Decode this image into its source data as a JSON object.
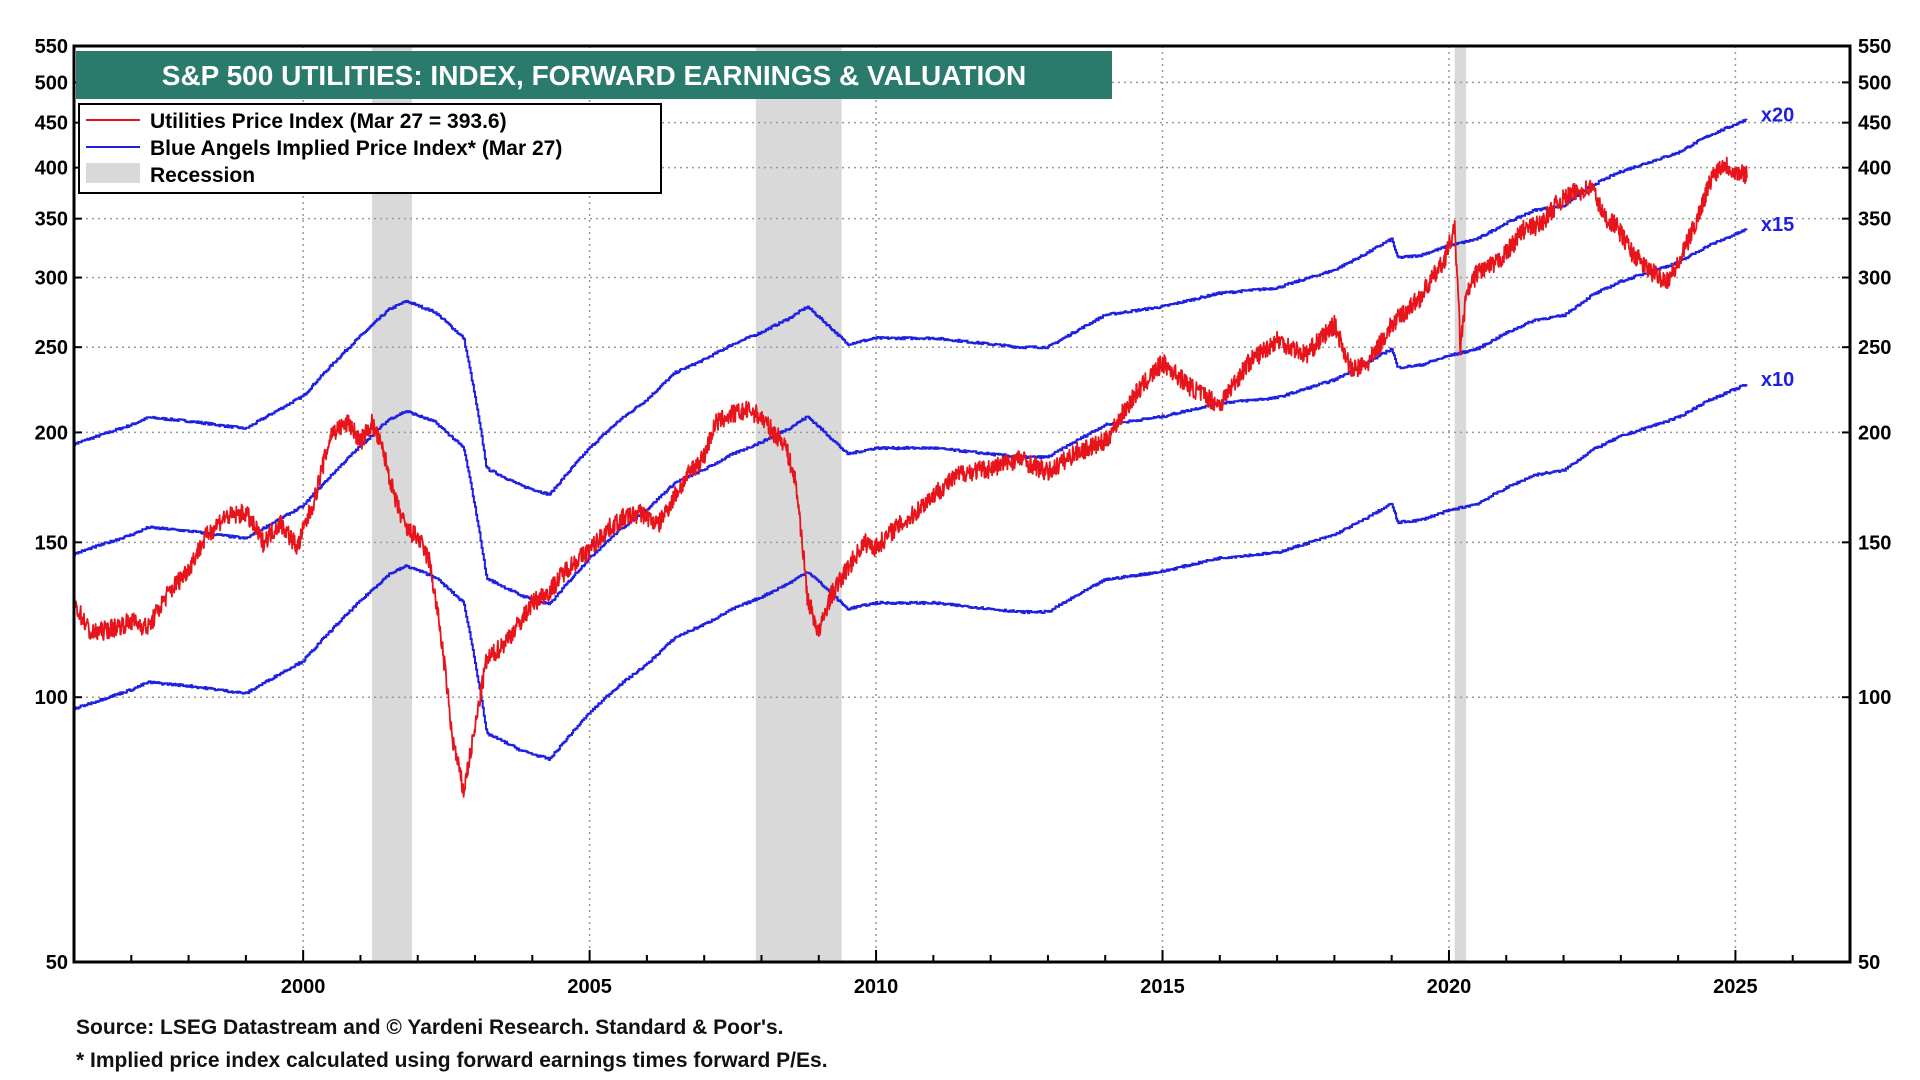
{
  "chart_data": {
    "type": "line",
    "title": "S&P 500 UTILITIES: INDEX, FORWARD EARNINGS & VALUATION",
    "y_scale": "log",
    "ylim": [
      50,
      550
    ],
    "xlim": [
      1996.0,
      2027.0
    ],
    "y_ticks": [
      50,
      100,
      150,
      200,
      250,
      300,
      350,
      400,
      450,
      500,
      550
    ],
    "x_ticks": [
      2000,
      2005,
      2010,
      2015,
      2020,
      2025
    ],
    "legend": [
      {
        "label": "Utilities Price Index (Mar 27 = 393.6)",
        "color": "#e8141b",
        "kind": "line"
      },
      {
        "label": "Blue Angels Implied Price Index* (Mar 27)",
        "color": "#1f1fe0",
        "kind": "line"
      },
      {
        "label": "Recession",
        "color": "#d9d9d9",
        "kind": "box"
      }
    ],
    "recessions": [
      [
        2001.2,
        2001.9
      ],
      [
        2007.9,
        2009.4
      ],
      [
        2020.1,
        2020.3
      ]
    ],
    "forward_earnings_x": [
      1996.0,
      1997.0,
      1997.3,
      1998.0,
      1999.0,
      2000.0,
      2000.8,
      2001.5,
      2001.8,
      2002.3,
      2002.8,
      2003.2,
      2003.8,
      2004.3,
      2005.0,
      2005.5,
      2006.0,
      2006.5,
      2007.0,
      2007.5,
      2008.0,
      2008.5,
      2008.8,
      2009.5,
      2010.0,
      2011.0,
      2012.0,
      2012.5,
      2013.0,
      2014.0,
      2015.0,
      2016.0,
      2017.0,
      2018.0,
      2018.5,
      2019.0,
      2019.1,
      2019.5,
      2020.0,
      2020.5,
      2021.0,
      2021.5,
      2022.0,
      2022.5,
      2023.0,
      2023.5,
      2024.0,
      2024.5,
      2025.0,
      2025.2
    ],
    "forward_earnings_y": [
      9.7,
      10.2,
      10.4,
      10.3,
      10.1,
      11.0,
      12.5,
      13.8,
      14.1,
      13.7,
      12.8,
      9.1,
      8.7,
      8.5,
      9.6,
      10.3,
      10.9,
      11.7,
      12.1,
      12.6,
      13.0,
      13.5,
      13.9,
      12.6,
      12.8,
      12.8,
      12.6,
      12.5,
      12.5,
      13.6,
      13.9,
      14.4,
      14.6,
      15.3,
      15.9,
      16.6,
      15.8,
      15.9,
      16.3,
      16.6,
      17.3,
      17.9,
      18.1,
      19.1,
      19.8,
      20.3,
      20.8,
      21.7,
      22.4,
      22.7
    ],
    "series": [
      {
        "name": "x20",
        "multiplier": 20,
        "color": "#1f1fe0"
      },
      {
        "name": "x15",
        "multiplier": 15,
        "color": "#1f1fe0"
      },
      {
        "name": "x10",
        "multiplier": 10,
        "color": "#1f1fe0"
      },
      {
        "name": "Utilities Price Index",
        "color": "#e8141b",
        "x": [
          1996.0,
          1996.3,
          1996.7,
          1997.0,
          1997.3,
          1997.6,
          1998.0,
          1998.3,
          1998.6,
          1999.0,
          1999.3,
          1999.6,
          1999.9,
          2000.2,
          2000.5,
          2000.8,
          2001.0,
          2001.2,
          2001.4,
          2001.6,
          2001.8,
          2002.0,
          2002.2,
          2002.4,
          2002.6,
          2002.8,
          2003.0,
          2003.2,
          2003.5,
          2003.8,
          2004.0,
          2004.3,
          2004.6,
          2005.0,
          2005.3,
          2005.6,
          2005.9,
          2006.2,
          2006.5,
          2006.8,
          2007.0,
          2007.2,
          2007.5,
          2007.8,
          2008.0,
          2008.2,
          2008.4,
          2008.6,
          2008.8,
          2009.0,
          2009.2,
          2009.5,
          2009.8,
          2010.0,
          2010.3,
          2010.6,
          2011.0,
          2011.5,
          2012.0,
          2012.5,
          2013.0,
          2013.5,
          2014.0,
          2014.5,
          2015.0,
          2015.5,
          2016.0,
          2016.5,
          2017.0,
          2017.5,
          2018.0,
          2018.3,
          2018.6,
          2019.0,
          2019.5,
          2019.9,
          2020.1,
          2020.2,
          2020.3,
          2020.5,
          2020.8,
          2021.0,
          2021.3,
          2021.6,
          2021.9,
          2022.2,
          2022.5,
          2022.7,
          2022.9,
          2023.2,
          2023.5,
          2023.8,
          2024.0,
          2024.3,
          2024.6,
          2024.8,
          2025.0,
          2025.2
        ],
        "y": [
          128,
          118,
          120,
          122,
          120,
          130,
          140,
          152,
          160,
          162,
          150,
          158,
          148,
          168,
          200,
          205,
          195,
          205,
          190,
          168,
          155,
          152,
          143,
          118,
          90,
          78,
          92,
          110,
          115,
          122,
          128,
          132,
          140,
          147,
          155,
          160,
          162,
          157,
          170,
          182,
          188,
          205,
          210,
          212,
          208,
          200,
          195,
          175,
          130,
          118,
          130,
          140,
          150,
          148,
          155,
          160,
          170,
          180,
          182,
          187,
          180,
          190,
          195,
          220,
          240,
          225,
          215,
          240,
          255,
          245,
          265,
          235,
          240,
          265,
          285,
          312,
          340,
          250,
          285,
          305,
          310,
          320,
          340,
          345,
          365,
          375,
          380,
          352,
          345,
          320,
          305,
          298,
          310,
          345,
          392,
          405,
          395,
          393.6
        ]
      }
    ]
  },
  "source_note": "Source: LSEG Datastream and © Yardeni Research. Standard & Poor's.",
  "footnote": "* Implied price index calculated using forward earnings times forward P/Es."
}
